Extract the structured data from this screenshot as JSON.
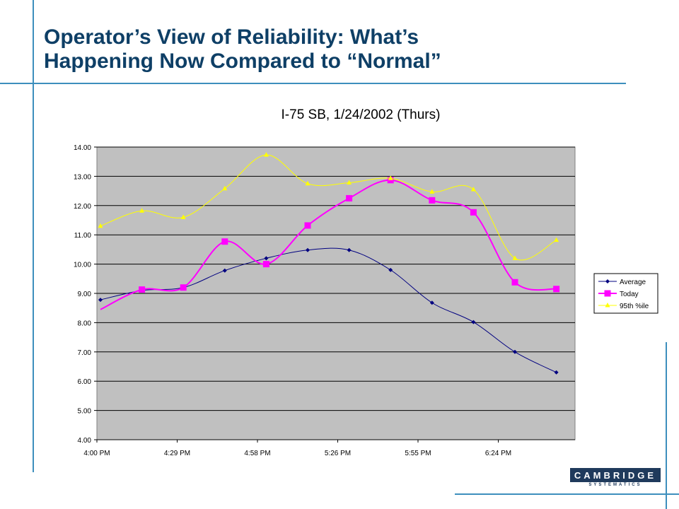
{
  "slide": {
    "title_line1": "Operator’s View of Reliability: What’s",
    "title_line2": "Happening Now Compared to “Normal”",
    "logo_main": "CAMBRIDGE",
    "logo_sub": "SYSTEMATICS"
  },
  "colors": {
    "accent": "#3d8fbd",
    "title": "#0e3f66",
    "plot_background": "#c0c0c0",
    "average": "#000080",
    "today": "#ff00ff",
    "p95": "#ffff00"
  },
  "chart_data": {
    "type": "line",
    "title": "I-75 SB, 1/24/2002 (Thurs)",
    "xlabel": "",
    "ylabel": "",
    "x_ticks": [
      "4:00 PM",
      "4:29 PM",
      "4:58 PM",
      "5:26 PM",
      "5:55 PM",
      "6:24 PM"
    ],
    "x": [
      0,
      1,
      2,
      3,
      4,
      5,
      6,
      7,
      8,
      9,
      10,
      11
    ],
    "x_note_hidden": "",
    "ylim": [
      4,
      14
    ],
    "y_ticks": [
      "4.00",
      "5.00",
      "6.00",
      "7.00",
      "8.00",
      "9.00",
      "10.00",
      "11.00",
      "12.00",
      "13.00",
      "14.00"
    ],
    "grid": true,
    "legend_position": "right",
    "series": [
      {
        "name": "Average",
        "marker": "diamond",
        "color": "#000080",
        "values": [
          8.78,
          9.1,
          9.2,
          9.78,
          10.2,
          10.48,
          10.48,
          9.8,
          8.68,
          8.02,
          7.0,
          6.3
        ]
      },
      {
        "name": "Today",
        "marker": "square",
        "color": "#ff00ff",
        "values": [
          8.45,
          9.13,
          9.2,
          10.77,
          10.0,
          11.32,
          12.25,
          12.87,
          12.18,
          11.77,
          9.38,
          9.15
        ]
      },
      {
        "name": "95th %ile",
        "marker": "triangle",
        "color": "#ffff00",
        "values": [
          11.3,
          11.82,
          11.6,
          12.58,
          13.73,
          12.75,
          12.78,
          12.93,
          12.47,
          12.55,
          10.2,
          10.82
        ]
      }
    ]
  }
}
